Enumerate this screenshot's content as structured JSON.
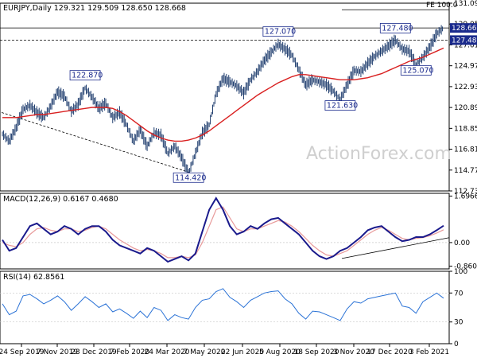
{
  "chart_data": [
    {
      "type": "line",
      "panel": "price",
      "header": "EURJPY,Daily  129.321 129.509 128.650 128.668",
      "ohlc": {
        "open": 129.321,
        "high": 129.509,
        "low": 128.65,
        "close": 128.668
      },
      "ylim": [
        112.73,
        131.09
      ],
      "y_ticks": [
        "131.090",
        "129.050",
        "127.010",
        "124.970",
        "122.930",
        "120.890",
        "118.850",
        "116.810",
        "114.770",
        "112.730"
      ],
      "x_tick_labels": [
        "24 Sep 2019",
        "7 Nov 2019",
        "23 Dec 2019",
        "7 Feb 2020",
        "24 Mar 2020",
        "7 May 2020",
        "22 Jun 2020",
        "5 Aug 2020",
        "18 Sep 2020",
        "3 Nov 2020",
        "17 Dec 2020",
        "3 Feb 2021"
      ],
      "series": [
        {
          "values": [
            118.3,
            117.6,
            118.9,
            120.7,
            121.1,
            120.4,
            119.9,
            121.0,
            122.4,
            122.0,
            120.5,
            121.2,
            122.8,
            121.9,
            120.8,
            121.3,
            119.9,
            120.4,
            119.2,
            117.6,
            118.7,
            117.1,
            118.4,
            118.2,
            116.4,
            117.1,
            116.0,
            114.42,
            116.4,
            118.4,
            119.2,
            122.2,
            123.7,
            123.4,
            123.0,
            122.3,
            123.6,
            124.4,
            125.5,
            126.3,
            127.07,
            126.6,
            126.0,
            124.6,
            123.1,
            123.6,
            123.4,
            123.1,
            122.5,
            121.63,
            123.1,
            124.5,
            124.4,
            125.2,
            125.9,
            126.4,
            126.9,
            127.48,
            126.6,
            126.4,
            125.07,
            125.8,
            126.8,
            128.1,
            128.668
          ]
        },
        {
          "values": [
            119.9,
            119.9,
            119.9,
            120.0,
            120.1,
            120.2,
            120.2,
            120.3,
            120.4,
            120.5,
            120.6,
            120.7,
            120.8,
            120.9,
            120.9,
            120.9,
            120.8,
            120.5,
            120.1,
            119.6,
            119.1,
            118.6,
            118.2,
            117.9,
            117.7,
            117.6,
            117.6,
            117.7,
            117.9,
            118.2,
            118.6,
            119.1,
            119.6,
            120.1,
            120.6,
            121.1,
            121.6,
            122.1,
            122.5,
            122.9,
            123.3,
            123.6,
            123.9,
            124.1,
            124.1,
            124.0,
            123.9,
            123.8,
            123.7,
            123.6,
            123.6,
            123.6,
            123.7,
            123.8,
            124.0,
            124.2,
            124.5,
            124.8,
            125.1,
            125.4,
            125.6,
            125.8,
            126.1,
            126.4,
            126.7
          ]
        }
      ],
      "annotations": [
        {
          "label": "122.870",
          "value": 122.87
        },
        {
          "label": "114.420",
          "value": 114.42
        },
        {
          "label": "127.070",
          "value": 127.07
        },
        {
          "label": "121.630",
          "value": 121.63
        },
        {
          "label": "127.480",
          "value": 127.48
        },
        {
          "label": "125.070",
          "value": 125.07
        }
      ],
      "levels": [
        {
          "label": "FE 100.0",
          "value": 130.45
        },
        {
          "label": "128.668",
          "value": 128.668
        },
        {
          "label": "127.480",
          "value": 127.48
        }
      ],
      "watermark": "ActionForex.com"
    },
    {
      "type": "line",
      "panel": "macd",
      "header": "MACD(12,26,9) 0.6167 0.4680",
      "values_shown": {
        "macd": 0.6167,
        "signal": 0.468
      },
      "ylim": [
        -0.8602,
        1.6966
      ],
      "y_ticks": [
        "1.6966",
        "0.00",
        "-0.8602"
      ],
      "series": [
        {
          "values": [
            0.1,
            -0.3,
            -0.2,
            0.2,
            0.6,
            0.7,
            0.5,
            0.3,
            0.4,
            0.6,
            0.5,
            0.3,
            0.5,
            0.6,
            0.6,
            0.4,
            0.1,
            -0.1,
            -0.2,
            -0.3,
            -0.4,
            -0.2,
            -0.3,
            -0.5,
            -0.7,
            -0.6,
            -0.5,
            -0.65,
            -0.4,
            0.4,
            1.2,
            1.62,
            1.2,
            0.6,
            0.3,
            0.4,
            0.6,
            0.5,
            0.7,
            0.85,
            0.9,
            0.7,
            0.5,
            0.3,
            0.0,
            -0.3,
            -0.5,
            -0.6,
            -0.5,
            -0.3,
            -0.2,
            0.0,
            0.2,
            0.45,
            0.55,
            0.6,
            0.4,
            0.2,
            0.05,
            0.1,
            0.2,
            0.2,
            0.3,
            0.45,
            0.6167
          ]
        },
        {
          "values": [
            0.0,
            -0.1,
            -0.15,
            0.0,
            0.3,
            0.5,
            0.55,
            0.45,
            0.4,
            0.5,
            0.5,
            0.4,
            0.45,
            0.55,
            0.6,
            0.5,
            0.3,
            0.1,
            -0.05,
            -0.2,
            -0.3,
            -0.25,
            -0.3,
            -0.4,
            -0.55,
            -0.55,
            -0.5,
            -0.55,
            -0.45,
            0.0,
            0.6,
            1.2,
            1.3,
            0.9,
            0.5,
            0.4,
            0.5,
            0.5,
            0.6,
            0.7,
            0.8,
            0.75,
            0.6,
            0.4,
            0.15,
            -0.1,
            -0.3,
            -0.45,
            -0.5,
            -0.4,
            -0.3,
            -0.1,
            0.1,
            0.3,
            0.45,
            0.55,
            0.45,
            0.3,
            0.15,
            0.1,
            0.15,
            0.18,
            0.25,
            0.35,
            0.468
          ]
        }
      ]
    },
    {
      "type": "line",
      "panel": "rsi",
      "header": "RSI(14) 62.8561",
      "values_shown": {
        "rsi": 62.8561
      },
      "ylim": [
        0,
        100
      ],
      "y_ticks": [
        "100",
        "70",
        "30",
        "0"
      ],
      "series": [
        {
          "values": [
            55,
            40,
            45,
            66,
            68,
            62,
            55,
            60,
            66,
            58,
            46,
            55,
            65,
            58,
            50,
            55,
            44,
            48,
            42,
            35,
            45,
            36,
            50,
            46,
            32,
            40,
            36,
            34,
            50,
            60,
            62,
            72,
            76,
            64,
            58,
            50,
            60,
            65,
            70,
            72,
            73,
            62,
            55,
            42,
            34,
            45,
            44,
            40,
            36,
            32,
            48,
            58,
            56,
            62,
            64,
            66,
            68,
            70,
            52,
            50,
            42,
            58,
            64,
            70,
            62.86
          ]
        }
      ]
    }
  ]
}
